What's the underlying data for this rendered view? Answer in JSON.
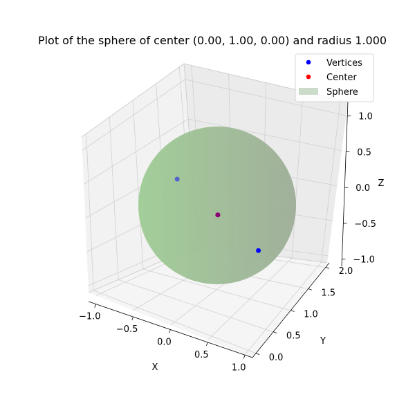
{
  "chart_data": {
    "type": "scatter",
    "title": "Plot of the sphere of center (0.00, 1.00, 0.00) and radius 1.000",
    "xlabel": "X",
    "ylabel": "Y",
    "zlabel": "Z",
    "xlim": [
      -1.1,
      1.1
    ],
    "ylim": [
      -0.1,
      2.1
    ],
    "zlim": [
      -1.1,
      1.2
    ],
    "x_ticks": [
      "−1.0",
      "−0.5",
      "0.0",
      "0.5",
      "1.0"
    ],
    "y_ticks": [
      "0.0",
      "0.5",
      "1.0",
      "1.5",
      "2.0"
    ],
    "z_ticks": [
      "−1.0",
      "−0.5",
      "0.0",
      "0.5",
      "1.0"
    ],
    "grid": true,
    "legend_position": "top-right",
    "legend": [
      {
        "label": "Vertices",
        "kind": "marker",
        "color": "#0000ff"
      },
      {
        "label": "Center",
        "kind": "marker",
        "color": "#ff0000"
      },
      {
        "label": "Sphere",
        "kind": "patch",
        "color": "#b7cdb3"
      }
    ],
    "sphere": {
      "center": [
        0.0,
        1.0,
        0.0
      ],
      "radius": 1.0,
      "color": "#8fc58a"
    },
    "vertices": [
      {
        "x": 0.0,
        "y": 0.0,
        "z": -1.0
      },
      {
        "x": 0.0,
        "y": 1.0,
        "z": 0.0
      },
      {
        "x": 0.0,
        "y": 2.0,
        "z": 1.0
      }
    ],
    "center": {
      "x": 0.0,
      "y": 1.0,
      "z": 0.0
    },
    "colors": {
      "vertices": "#0000ff",
      "center": "#ff0000"
    }
  }
}
